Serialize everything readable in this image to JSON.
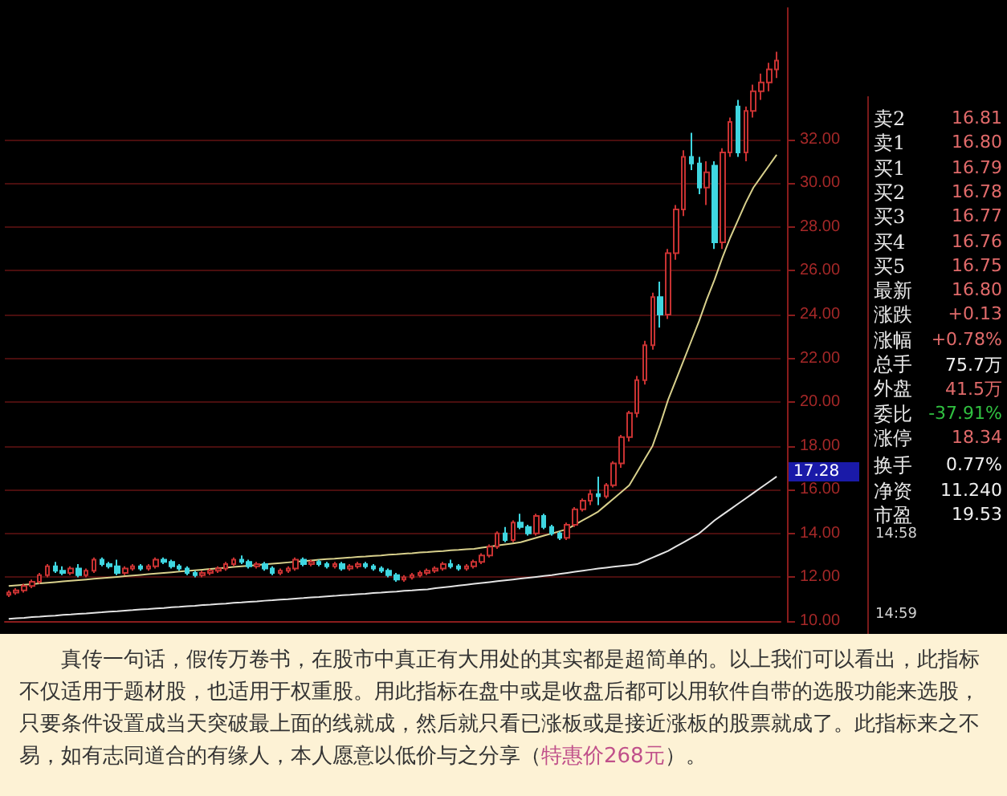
{
  "chart_data": {
    "type": "candlestick",
    "categories": [
      null,
      null,
      null,
      null,
      null,
      null,
      null,
      null,
      null,
      null,
      null,
      null,
      null,
      null,
      null,
      null,
      null,
      null,
      null,
      null,
      null,
      null,
      null,
      null,
      null,
      null,
      null,
      null,
      null,
      null,
      null,
      null,
      null,
      null,
      null,
      null,
      null,
      null,
      null,
      null,
      null,
      null,
      null,
      null,
      null,
      null,
      null,
      null,
      null,
      null,
      null,
      null,
      null,
      null,
      null,
      null,
      null,
      null,
      null,
      null,
      null,
      null,
      null,
      null,
      null,
      null,
      null,
      null,
      null,
      null,
      null,
      null,
      null,
      null,
      null,
      null,
      null,
      null,
      null,
      null,
      null,
      null,
      null,
      null,
      null,
      null,
      null,
      null,
      null,
      null,
      null,
      null,
      null,
      null,
      null,
      null,
      null,
      null,
      null,
      null
    ],
    "ylim": [
      10,
      38
    ],
    "yticks": [
      {
        "value": 10,
        "label": "10.00"
      },
      {
        "value": 12,
        "label": "12.00"
      },
      {
        "value": 14,
        "label": "14.00"
      },
      {
        "value": 16,
        "label": "16.00"
      },
      {
        "value": 18,
        "label": "18.00"
      },
      {
        "value": 20,
        "label": "20.00"
      },
      {
        "value": 22,
        "label": "22.00"
      },
      {
        "value": 24,
        "label": "24.00"
      },
      {
        "value": 26,
        "label": "26.00"
      },
      {
        "value": 28,
        "label": "28.00"
      },
      {
        "value": 30,
        "label": "30.00"
      },
      {
        "value": 32,
        "label": "32.00"
      }
    ],
    "grid": "y",
    "tick_labels": "y",
    "marker": "none",
    "series": [
      {
        "type": "candlestick",
        "ohlc": [
          [
            11.2,
            11.4,
            11.1,
            11.3
          ],
          [
            11.3,
            11.5,
            11.2,
            11.4
          ],
          [
            11.4,
            11.7,
            11.3,
            11.6
          ],
          [
            11.6,
            11.9,
            11.5,
            11.8
          ],
          [
            11.8,
            12.2,
            11.7,
            12.1
          ],
          [
            12.1,
            12.6,
            12.0,
            12.5
          ],
          [
            12.5,
            12.7,
            12.2,
            12.3
          ],
          [
            12.3,
            12.5,
            12.1,
            12.2
          ],
          [
            12.2,
            12.5,
            12.1,
            12.4
          ],
          [
            12.4,
            12.6,
            12.0,
            12.1
          ],
          [
            12.1,
            12.4,
            12.0,
            12.3
          ],
          [
            12.3,
            12.9,
            12.2,
            12.8
          ],
          [
            12.8,
            12.9,
            12.5,
            12.6
          ],
          [
            12.6,
            12.7,
            12.4,
            12.5
          ],
          [
            12.5,
            12.8,
            12.1,
            12.2
          ],
          [
            12.2,
            12.5,
            12.1,
            12.4
          ],
          [
            12.4,
            12.6,
            12.3,
            12.5
          ],
          [
            12.5,
            12.6,
            12.3,
            12.4
          ],
          [
            12.4,
            12.6,
            12.3,
            12.5
          ],
          [
            12.5,
            12.9,
            12.4,
            12.8
          ],
          [
            12.8,
            12.9,
            12.6,
            12.7
          ],
          [
            12.7,
            12.8,
            12.4,
            12.5
          ],
          [
            12.5,
            12.6,
            12.3,
            12.4
          ],
          [
            12.4,
            12.5,
            12.1,
            12.2
          ],
          [
            12.2,
            12.3,
            12.0,
            12.1
          ],
          [
            12.1,
            12.3,
            12.0,
            12.2
          ],
          [
            12.2,
            12.4,
            12.1,
            12.3
          ],
          [
            12.3,
            12.5,
            12.2,
            12.4
          ],
          [
            12.4,
            12.7,
            12.3,
            12.6
          ],
          [
            12.6,
            12.9,
            12.5,
            12.8
          ],
          [
            12.8,
            13.0,
            12.6,
            12.7
          ],
          [
            12.7,
            12.8,
            12.4,
            12.5
          ],
          [
            12.5,
            12.7,
            12.4,
            12.6
          ],
          [
            12.6,
            12.7,
            12.3,
            12.4
          ],
          [
            12.4,
            12.5,
            12.1,
            12.2
          ],
          [
            12.2,
            12.4,
            12.1,
            12.3
          ],
          [
            12.3,
            12.5,
            12.2,
            12.4
          ],
          [
            12.4,
            12.9,
            12.3,
            12.8
          ],
          [
            12.8,
            12.9,
            12.5,
            12.6
          ],
          [
            12.6,
            12.8,
            12.5,
            12.7
          ],
          [
            12.7,
            12.8,
            12.5,
            12.6
          ],
          [
            12.6,
            12.7,
            12.4,
            12.5
          ],
          [
            12.5,
            12.7,
            12.4,
            12.6
          ],
          [
            12.6,
            12.7,
            12.3,
            12.4
          ],
          [
            12.4,
            12.6,
            12.3,
            12.5
          ],
          [
            12.5,
            12.7,
            12.4,
            12.6
          ],
          [
            12.6,
            12.7,
            12.4,
            12.5
          ],
          [
            12.5,
            12.6,
            12.3,
            12.4
          ],
          [
            12.4,
            12.5,
            12.2,
            12.3
          ],
          [
            12.3,
            12.4,
            12.0,
            12.1
          ],
          [
            12.1,
            12.2,
            11.8,
            11.9
          ],
          [
            11.9,
            12.1,
            11.8,
            12.0
          ],
          [
            12.0,
            12.2,
            11.9,
            12.1
          ],
          [
            12.1,
            12.3,
            12.0,
            12.2
          ],
          [
            12.2,
            12.4,
            12.1,
            12.3
          ],
          [
            12.3,
            12.5,
            12.2,
            12.4
          ],
          [
            12.4,
            12.7,
            12.3,
            12.6
          ],
          [
            12.6,
            12.8,
            12.4,
            12.5
          ],
          [
            12.5,
            12.6,
            12.3,
            12.4
          ],
          [
            12.4,
            12.6,
            12.3,
            12.5
          ],
          [
            12.5,
            12.8,
            12.4,
            12.7
          ],
          [
            12.7,
            13.1,
            12.6,
            13.0
          ],
          [
            13.0,
            13.5,
            12.9,
            13.4
          ],
          [
            13.4,
            14.1,
            13.3,
            14.0
          ],
          [
            14.0,
            14.3,
            13.6,
            13.7
          ],
          [
            13.7,
            14.6,
            13.6,
            14.5
          ],
          [
            14.5,
            14.9,
            14.2,
            14.3
          ],
          [
            14.3,
            14.4,
            13.9,
            14.0
          ],
          [
            14.0,
            14.9,
            13.9,
            14.8
          ],
          [
            14.8,
            14.9,
            14.2,
            14.3
          ],
          [
            14.3,
            14.4,
            13.9,
            14.0
          ],
          [
            14.0,
            14.1,
            13.7,
            13.8
          ],
          [
            13.8,
            14.5,
            13.7,
            14.4
          ],
          [
            14.4,
            15.2,
            14.3,
            15.1
          ],
          [
            15.1,
            15.6,
            15.0,
            15.5
          ],
          [
            15.5,
            16.0,
            15.3,
            15.8
          ],
          [
            15.8,
            16.6,
            15.3,
            15.7
          ],
          [
            15.7,
            16.3,
            15.6,
            16.2
          ],
          [
            16.2,
            17.3,
            16.1,
            17.2
          ],
          [
            17.2,
            18.5,
            17.0,
            18.4
          ],
          [
            18.4,
            19.6,
            18.2,
            19.5
          ],
          [
            19.5,
            21.2,
            19.3,
            21.0
          ],
          [
            21.0,
            22.8,
            20.8,
            22.6
          ],
          [
            22.6,
            25.0,
            22.4,
            24.8
          ],
          [
            24.8,
            25.5,
            23.4,
            24.0
          ],
          [
            24.0,
            27.0,
            23.8,
            26.8
          ],
          [
            26.8,
            29.0,
            26.5,
            28.8
          ],
          [
            28.8,
            31.5,
            28.5,
            31.2
          ],
          [
            31.2,
            32.3,
            30.6,
            30.9
          ],
          [
            30.9,
            31.2,
            29.5,
            29.8
          ],
          [
            29.8,
            31.0,
            29.0,
            30.5
          ],
          [
            30.8,
            31.0,
            27.0,
            27.3
          ],
          [
            27.3,
            31.6,
            27.0,
            31.4
          ],
          [
            31.4,
            33.0,
            31.2,
            32.8
          ],
          [
            33.5,
            33.8,
            31.2,
            31.4
          ],
          [
            31.4,
            33.5,
            31.0,
            33.3
          ],
          [
            33.3,
            34.5,
            33.0,
            34.2
          ],
          [
            34.2,
            35.0,
            33.8,
            34.6
          ],
          [
            34.6,
            35.5,
            34.2,
            35.2
          ],
          [
            35.2,
            36.0,
            34.8,
            35.6
          ]
        ],
        "colors": [
          "#c83232",
          "#c83232",
          "#c83232",
          "#c83232",
          "#c83232",
          "#c83232",
          "#3fd6e0",
          "#3fd6e0",
          "#c83232",
          "#3fd6e0",
          "#c83232",
          "#c83232",
          "#3fd6e0",
          "#3fd6e0",
          "#3fd6e0",
          "#c83232",
          "#c83232",
          "#3fd6e0",
          "#c83232",
          "#c83232",
          "#3fd6e0",
          "#3fd6e0",
          "#3fd6e0",
          "#3fd6e0",
          "#3fd6e0",
          "#c83232",
          "#c83232",
          "#c83232",
          "#c83232",
          "#c83232",
          "#3fd6e0",
          "#3fd6e0",
          "#c83232",
          "#3fd6e0",
          "#3fd6e0",
          "#c83232",
          "#c83232",
          "#c83232",
          "#3fd6e0",
          "#c83232",
          "#3fd6e0",
          "#3fd6e0",
          "#c83232",
          "#3fd6e0",
          "#c83232",
          "#c83232",
          "#3fd6e0",
          "#3fd6e0",
          "#3fd6e0",
          "#3fd6e0",
          "#3fd6e0",
          "#c83232",
          "#c83232",
          "#c83232",
          "#c83232",
          "#c83232",
          "#c83232",
          "#3fd6e0",
          "#3fd6e0",
          "#c83232",
          "#c83232",
          "#c83232",
          "#c83232",
          "#c83232",
          "#3fd6e0",
          "#c83232",
          "#3fd6e0",
          "#3fd6e0",
          "#c83232",
          "#3fd6e0",
          "#3fd6e0",
          "#3fd6e0",
          "#c83232",
          "#c83232",
          "#c83232",
          "#c83232",
          "#3fd6e0",
          "#c83232",
          "#c83232",
          "#c83232",
          "#c83232",
          "#c83232",
          "#c83232",
          "#c83232",
          "#3fd6e0",
          "#c83232",
          "#c83232",
          "#c83232",
          "#3fd6e0",
          "#3fd6e0",
          "#c83232",
          "#3fd6e0",
          "#c83232",
          "#c83232",
          "#3fd6e0",
          "#c83232",
          "#c83232",
          "#c83232",
          "#c83232",
          "#c83232"
        ]
      },
      {
        "type": "line",
        "color": "#d8d08c",
        "values": [
          11.6,
          11.63,
          11.66,
          11.69,
          11.72,
          11.75,
          11.78,
          11.81,
          11.84,
          11.87,
          11.9,
          11.93,
          11.96,
          11.99,
          12.02,
          12.05,
          12.08,
          12.11,
          12.14,
          12.17,
          12.2,
          12.23,
          12.26,
          12.29,
          12.32,
          12.35,
          12.38,
          12.41,
          12.44,
          12.47,
          12.5,
          12.53,
          12.56,
          12.59,
          12.62,
          12.65,
          12.68,
          12.71,
          12.74,
          12.77,
          12.8,
          12.83,
          12.85,
          12.88,
          12.9,
          12.93,
          12.95,
          12.98,
          13.0,
          13.03,
          13.05,
          13.08,
          13.1,
          13.13,
          13.15,
          13.18,
          13.2,
          13.23,
          13.25,
          13.28,
          13.3,
          13.35,
          13.4,
          13.45,
          13.5,
          13.55,
          13.6,
          13.7,
          13.8,
          13.9,
          14.0,
          14.1,
          14.2,
          14.4,
          14.6,
          14.8,
          15.0,
          15.3,
          15.6,
          15.9,
          16.2,
          16.8,
          17.4,
          18.0,
          19.0,
          20.1,
          21.0,
          21.9,
          22.8,
          23.7,
          24.7,
          25.6,
          26.6,
          27.5,
          28.3,
          29.1,
          29.8,
          30.3,
          30.8,
          31.3
        ]
      },
      {
        "type": "line",
        "color": "#e4e4e4",
        "values": [
          10.1,
          10.13,
          10.15,
          10.18,
          10.2,
          10.23,
          10.25,
          10.28,
          10.3,
          10.33,
          10.35,
          10.38,
          10.4,
          10.43,
          10.45,
          10.48,
          10.5,
          10.53,
          10.55,
          10.58,
          10.6,
          10.63,
          10.65,
          10.68,
          10.7,
          10.73,
          10.75,
          10.78,
          10.8,
          10.83,
          10.85,
          10.88,
          10.9,
          10.93,
          10.95,
          10.98,
          11.0,
          11.03,
          11.05,
          11.08,
          11.1,
          11.13,
          11.15,
          11.18,
          11.2,
          11.23,
          11.25,
          11.28,
          11.3,
          11.33,
          11.35,
          11.38,
          11.4,
          11.43,
          11.45,
          11.5,
          11.54,
          11.58,
          11.62,
          11.66,
          11.7,
          11.74,
          11.78,
          11.82,
          11.86,
          11.9,
          11.94,
          11.98,
          12.02,
          12.06,
          12.1,
          12.15,
          12.2,
          12.25,
          12.3,
          12.35,
          12.4,
          12.44,
          12.48,
          12.52,
          12.56,
          12.6,
          12.75,
          12.9,
          13.05,
          13.2,
          13.4,
          13.6,
          13.8,
          14.0,
          14.3,
          14.6,
          14.85,
          15.1,
          15.35,
          15.6,
          15.85,
          16.1,
          16.35,
          16.6
        ]
      }
    ],
    "annotations": [
      "卖2",
      "16.81",
      "卖1",
      "16.80",
      "买1",
      "16.79",
      "买2",
      "16.78",
      "买3",
      "16.77",
      "买4",
      "16.76",
      "买5",
      "16.75",
      "最新",
      "16.80",
      "涨跌",
      "+0.13",
      "涨幅",
      "+0.78%",
      "总手",
      "75.7万",
      "外盘",
      "41.5万",
      "委比",
      "-37.91%",
      "涨停",
      "18.34",
      "换手",
      "0.77%",
      "净资",
      "11.240",
      "市盈",
      "19.53",
      "14:58",
      "14:59",
      "真传一句话，假传万卷书，在股市中真正有大用处的其实都是超简单的。以上我们可以看出，此指标不仅适用于题材股，也适用于权重股。用此指标在盘中或是收盘后都可以用软件自带的选股功能来选股，只要条件设置成当天突破最上面的线就成，然后就只看已涨板或是接近涨板的股票就成了。此指标来之不易，如有志同道合的有缘人，本人愿意以低价与之分享（",
      "特惠价268元",
      "）。",
      "17.28"
    ]
  }
}
